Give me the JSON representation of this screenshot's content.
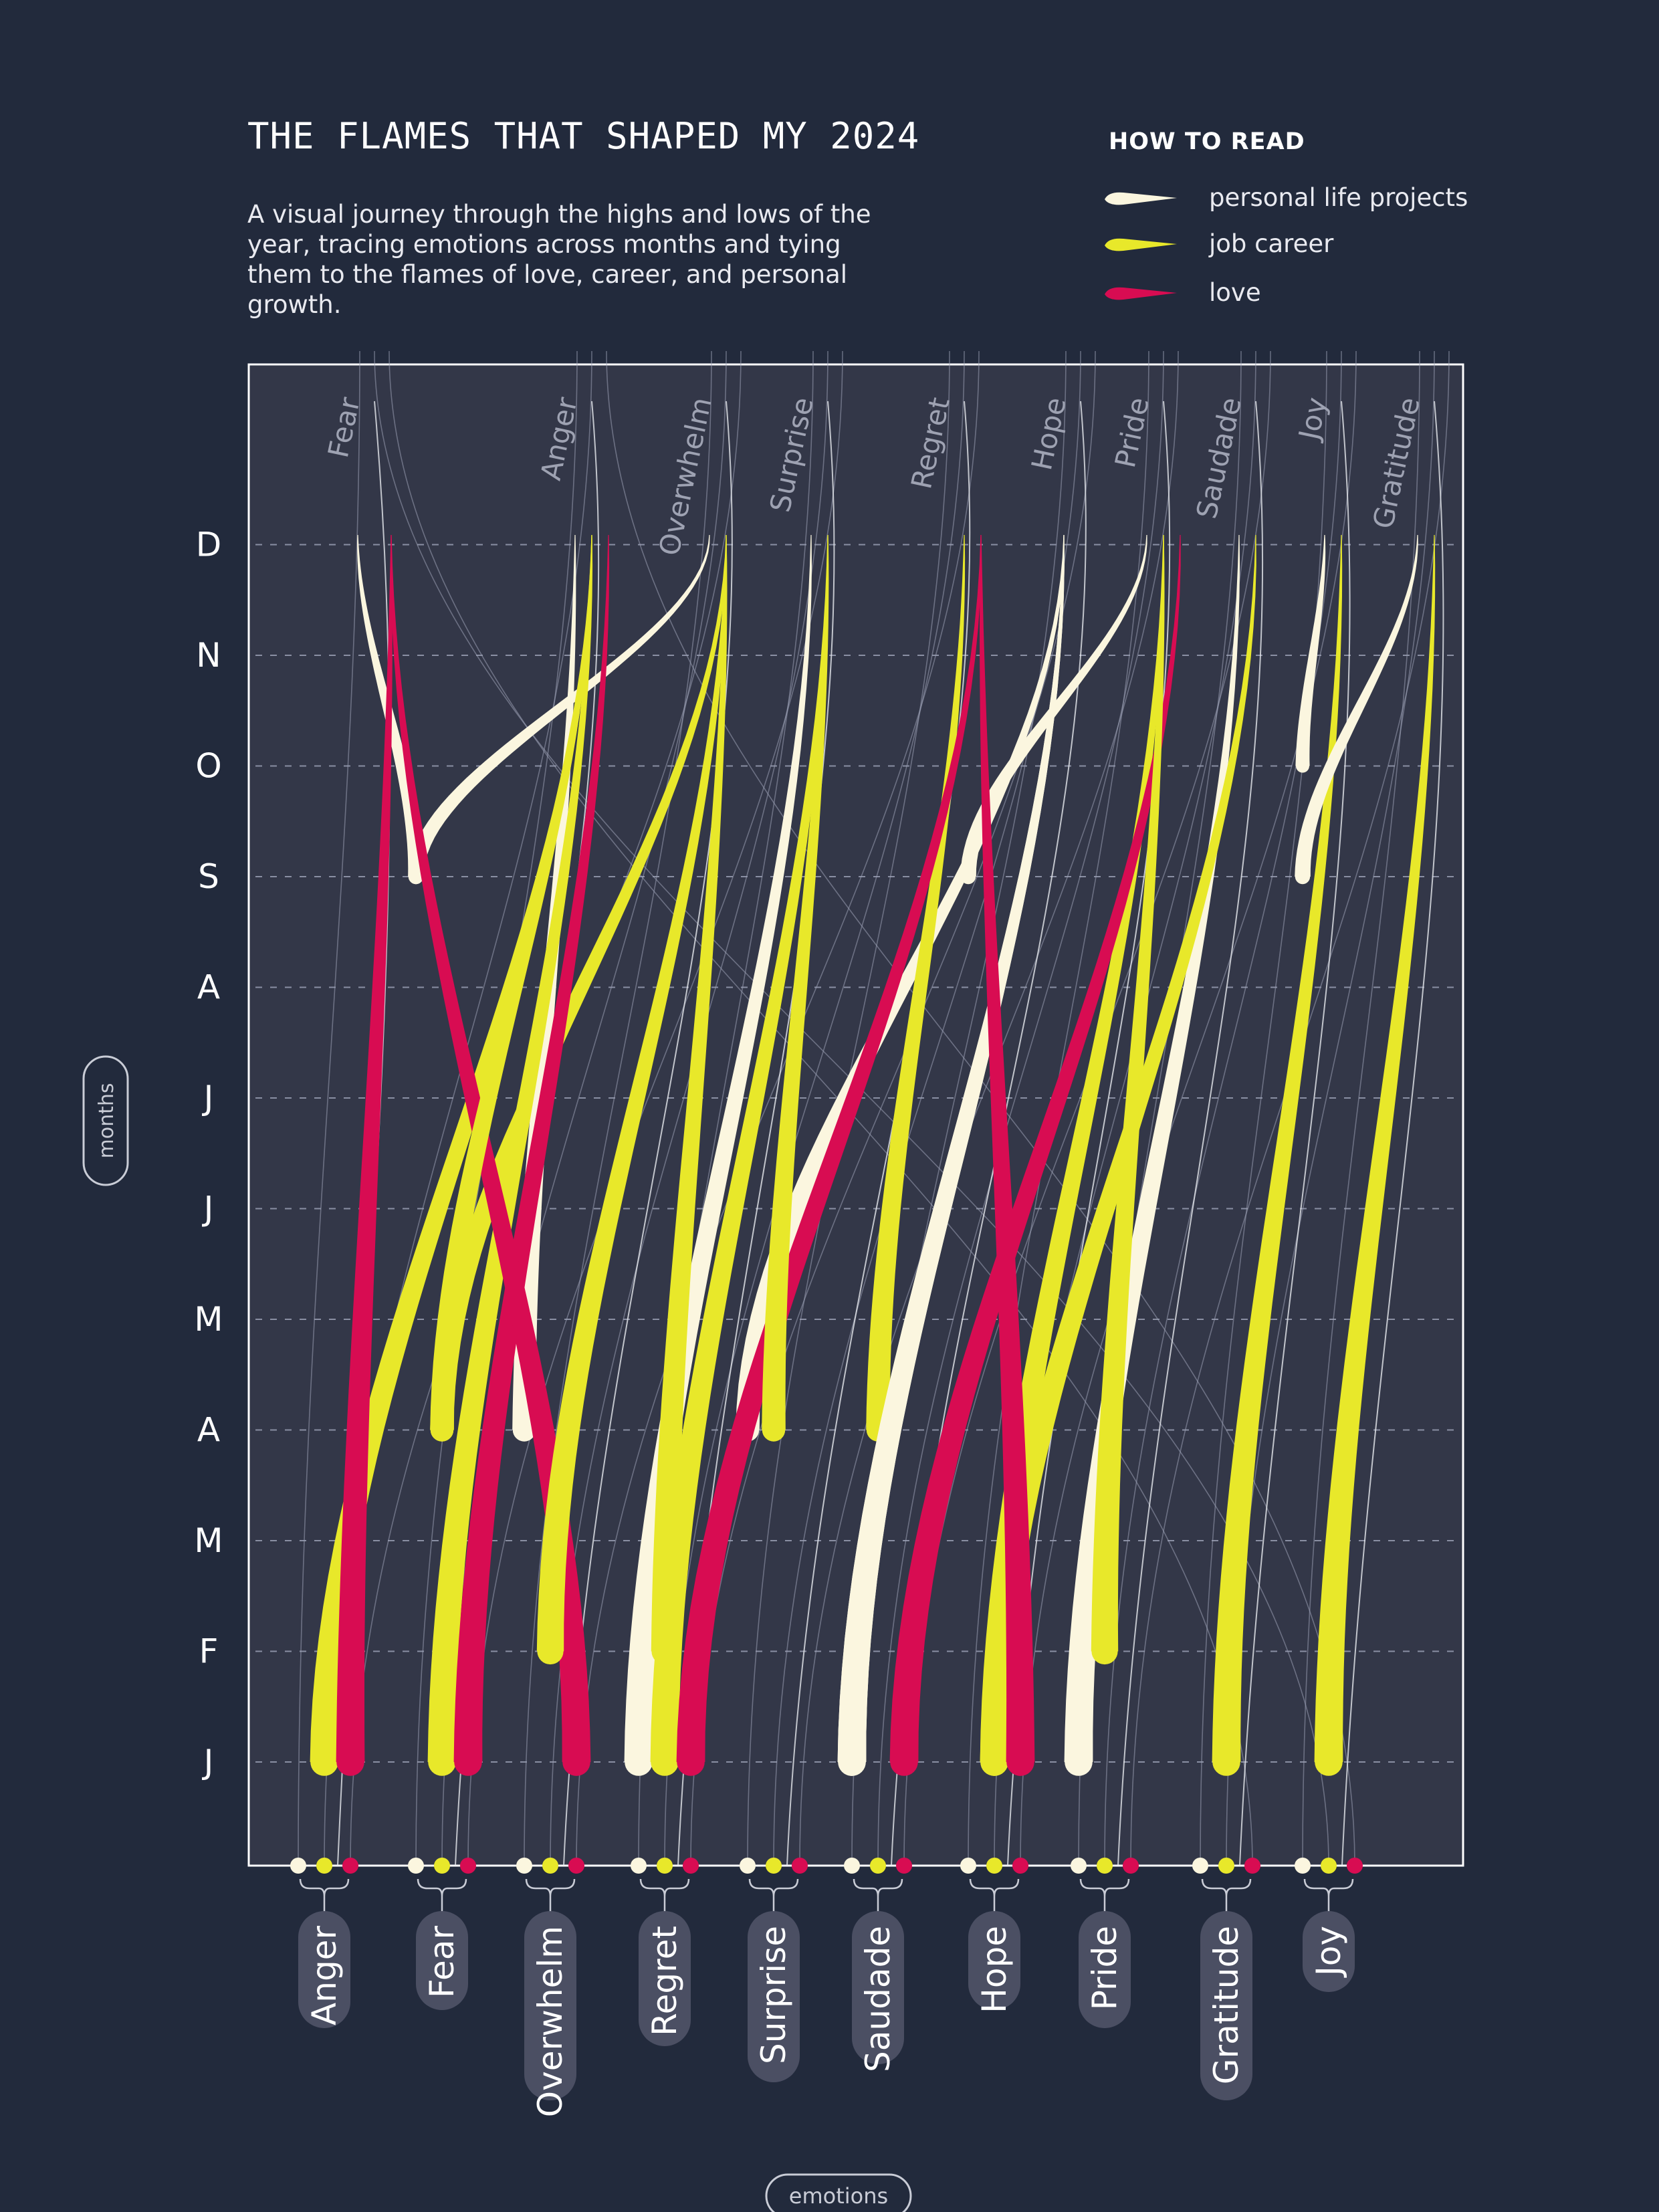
{
  "header": {
    "title": "THE FLAMES THAT SHAPED MY 2024",
    "subtitle": "A visual journey through the highs and lows of the year, tracing emotions across months and tying them to the flames of love, career, and personal growth."
  },
  "legend": {
    "heading": "HOW TO READ",
    "items": [
      {
        "key": "personal",
        "label": "personal life projects",
        "color": "#fbf6df"
      },
      {
        "key": "career",
        "label": "job career",
        "color": "#e8e82a"
      },
      {
        "key": "love",
        "label": "love",
        "color": "#d80c52"
      }
    ]
  },
  "chart_data": {
    "type": "flame-flow",
    "y_axis_title": "months",
    "x_axis_title": "emotions",
    "months": [
      "J",
      "F",
      "M",
      "A",
      "M",
      "J",
      "J",
      "A",
      "S",
      "O",
      "N",
      "D"
    ],
    "bottom_emotions": [
      "Anger",
      "Fear",
      "Overwhelm",
      "Regret",
      "Surprise",
      "Saudade",
      "Hope",
      "Pride",
      "Gratitude",
      "Joy"
    ],
    "top_emotions": [
      "Fear",
      "Anger",
      "Overwhelm",
      "Surprise",
      "Regret",
      "Hope",
      "Pride",
      "Saudade",
      "Joy",
      "Gratitude"
    ],
    "colors": {
      "personal": "#fbf6df",
      "career": "#e8e82a",
      "love": "#d80c52",
      "plot_bg": "#333748",
      "page_bg": "#222a3c"
    },
    "flames": [
      {
        "category": "personal",
        "from": "Fear",
        "start_month": "S",
        "end": "Fear"
      },
      {
        "category": "personal",
        "from": "Fear",
        "start_month": "S",
        "end": "Overwhelm"
      },
      {
        "category": "career",
        "from": "Fear",
        "start_month": "A",
        "end": "Overwhelm"
      },
      {
        "category": "personal",
        "from": "Overwhelm",
        "start_month": "A",
        "end": "Anger"
      },
      {
        "category": "personal",
        "from": "Regret",
        "start_month": "J",
        "end": "Surprise"
      },
      {
        "category": "career",
        "from": "Regret",
        "start_month": "J",
        "end": "Surprise"
      },
      {
        "category": "personal",
        "from": "Surprise",
        "start_month": "A",
        "end": "Hope"
      },
      {
        "category": "career",
        "from": "Saudade",
        "start_month": "A",
        "end": "Regret"
      },
      {
        "category": "personal",
        "from": "Saudade",
        "start_month": "J",
        "end": "Hope"
      },
      {
        "category": "personal",
        "from": "Hope",
        "start_month": "S",
        "end": "Pride"
      },
      {
        "category": "career",
        "from": "Hope",
        "start_month": "J",
        "end": "Pride"
      },
      {
        "category": "personal",
        "from": "Pride",
        "start_month": "J",
        "end": "Saudade"
      },
      {
        "category": "personal",
        "from": "Joy",
        "start_month": "O",
        "end": "Joy"
      },
      {
        "category": "career",
        "from": "Gratitude",
        "start_month": "J",
        "end": "Joy"
      },
      {
        "category": "personal",
        "from": "Joy",
        "start_month": "S",
        "end": "Gratitude"
      },
      {
        "category": "career",
        "from": "Joy",
        "start_month": "J",
        "end": "Gratitude"
      },
      {
        "category": "career",
        "from": "Anger",
        "start_month": "J",
        "end": "Anger"
      },
      {
        "category": "love",
        "from": "Anger",
        "start_month": "J",
        "end": "Fear"
      },
      {
        "category": "career",
        "from": "Fear",
        "start_month": "J",
        "end": "Anger"
      },
      {
        "category": "love",
        "from": "Fear",
        "start_month": "J",
        "end": "Anger"
      },
      {
        "category": "love",
        "from": "Overwhelm",
        "start_month": "J",
        "end": "Fear"
      },
      {
        "category": "career",
        "from": "Fear",
        "start_month": "A",
        "end": "Anger"
      },
      {
        "category": "career",
        "from": "Overwhelm",
        "start_month": "F",
        "end": "Overwhelm"
      },
      {
        "category": "love",
        "from": "Regret",
        "start_month": "J",
        "end": "Regret"
      },
      {
        "category": "career",
        "from": "Regret",
        "start_month": "F",
        "end": "Overwhelm"
      },
      {
        "category": "career",
        "from": "Surprise",
        "start_month": "A",
        "end": "Surprise"
      },
      {
        "category": "personal",
        "from": "Saudade",
        "start_month": "J",
        "end": "Hope"
      },
      {
        "category": "love",
        "from": "Saudade",
        "start_month": "J",
        "end": "Pride"
      },
      {
        "category": "career",
        "from": "Hope",
        "start_month": "J",
        "end": "Saudade"
      },
      {
        "category": "love",
        "from": "Hope",
        "start_month": "J",
        "end": "Regret"
      },
      {
        "category": "career",
        "from": "Pride",
        "start_month": "F",
        "end": "Pride"
      }
    ]
  }
}
